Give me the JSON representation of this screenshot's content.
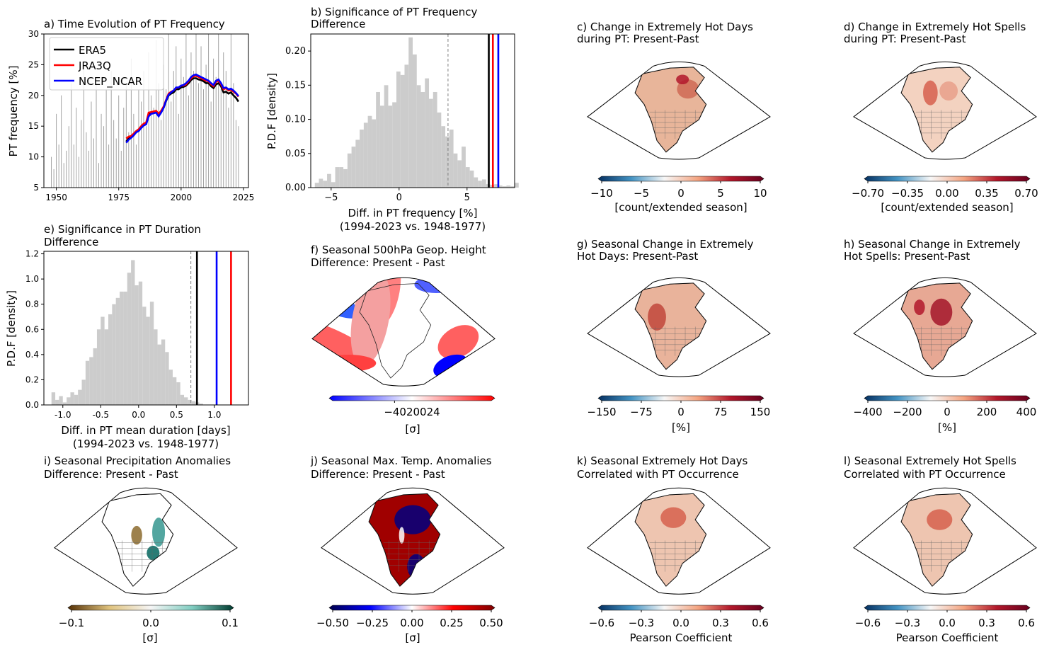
{
  "panels": {
    "a": {
      "title": [
        "a) Time Evolution of PT Frequency"
      ],
      "ylabel": "PT frequency [%]"
    },
    "b": {
      "title": [
        "b) Significance of PT Frequency",
        "Difference"
      ],
      "xlabel": [
        "Diff. in PT frequency [%]",
        "(1994-2023 vs. 1948-1977)"
      ],
      "ylabel": "P.D.F [density]"
    },
    "c": {
      "title": [
        "c) Change in Extremely Hot Days",
        "during PT: Present-Past"
      ],
      "cbar_label": "[count/extended season]"
    },
    "d": {
      "title": [
        "d) Change in Extremely Hot Spells",
        "during PT: Present-Past"
      ],
      "cbar_label": "[count/extended season]"
    },
    "e": {
      "title": [
        "e) Significance in PT Duration",
        "Difference"
      ],
      "xlabel": [
        "Diff. in PT mean duration [days]",
        "(1994-2023 vs. 1948-1977)"
      ],
      "ylabel": "P.D.F [density]"
    },
    "f": {
      "title": [
        "f) Seasonal 500hPa Geop. Height",
        "Difference: Present - Past"
      ],
      "cbar_label": "[σ]"
    },
    "g": {
      "title": [
        "g) Seasonal Change in Extremely",
        "Hot Days: Present-Past"
      ],
      "cbar_label": "[%]"
    },
    "h": {
      "title": [
        "h) Seasonal Change in Extremely",
        "Hot Spells: Present-Past"
      ],
      "cbar_label": "[%]"
    },
    "i": {
      "title": [
        "i) Seasonal Precipitation Anomalies",
        "Difference: Present - Past"
      ],
      "cbar_label": "[σ]"
    },
    "j": {
      "title": [
        "j) Seasonal Max. Temp. Anomalies",
        "Difference: Present - Past"
      ],
      "cbar_label": "[σ]"
    },
    "k": {
      "title": [
        "k) Seasonal Extremely Hot Days",
        "Correlated with PT Occurrence"
      ],
      "cbar_label": "Pearson Coefficient"
    },
    "l": {
      "title": [
        "l) Seasonal Extremely Hot Spells",
        "Correlated with PT Occurrence"
      ],
      "cbar_label": "Pearson Coefficient"
    }
  },
  "colormaps": {
    "RdBu_r": [
      "#053061",
      "#4393c3",
      "#f7f7f7",
      "#f4a582",
      "#b2182b",
      "#67001f"
    ],
    "bwr": [
      "#0000ff",
      "#ffffff",
      "#ff0000"
    ],
    "seismic": [
      "#00004c",
      "#0000ff",
      "#ffffff",
      "#ff0000",
      "#7f0000"
    ],
    "BrBG": [
      "#543005",
      "#dfc27d",
      "#f5f5f5",
      "#80cdc1",
      "#003c30"
    ]
  },
  "colors": {
    "ERA5": "#000000",
    "JRA3Q": "#ff0000",
    "NCEP_NCAR": "#0000ff",
    "hist": "#cccccc",
    "annual_bars": "#999999"
  },
  "chart_data": [
    {
      "panel": "a",
      "type": "line",
      "title": "a) Time Evolution of PT Frequency",
      "xlabel": "",
      "ylabel": "PT frequency [%]",
      "xlim": [
        1945,
        2027
      ],
      "ylim": [
        5,
        30
      ],
      "xticks": [
        1950,
        1975,
        2000,
        2025
      ],
      "yticks": [
        5,
        10,
        15,
        20,
        25,
        30
      ],
      "legend": "top-left",
      "bars": {
        "name": "annual",
        "x": [
          1948,
          1949,
          1950,
          1951,
          1952,
          1953,
          1954,
          1955,
          1956,
          1957,
          1958,
          1959,
          1960,
          1961,
          1962,
          1963,
          1964,
          1965,
          1966,
          1967,
          1968,
          1969,
          1970,
          1971,
          1972,
          1973,
          1974,
          1975,
          1976,
          1977,
          1978,
          1979,
          1980,
          1981,
          1982,
          1983,
          1984,
          1985,
          1986,
          1987,
          1988,
          1989,
          1990,
          1991,
          1992,
          1993,
          1994,
          1995,
          1996,
          1997,
          1998,
          1999,
          2000,
          2001,
          2002,
          2003,
          2004,
          2005,
          2006,
          2007,
          2008,
          2009,
          2010,
          2011,
          2012,
          2013,
          2014,
          2015,
          2016,
          2017,
          2018,
          2019,
          2020,
          2021,
          2022,
          2023
        ],
        "values": [
          10,
          8,
          17,
          12,
          20,
          9,
          11,
          15,
          22,
          12,
          18,
          10,
          16,
          25,
          14,
          11,
          19,
          13,
          22,
          9,
          17,
          15,
          21,
          12,
          24,
          16,
          13,
          20,
          11,
          18,
          22,
          14,
          26,
          17,
          12,
          21,
          19,
          24,
          15,
          27,
          20,
          18,
          29,
          22,
          16,
          25,
          21,
          30,
          19,
          24,
          28,
          17,
          26,
          23,
          30,
          20,
          27,
          24,
          30,
          22,
          28,
          21,
          25,
          30,
          19,
          26,
          23,
          30,
          21,
          27,
          24,
          18,
          30,
          22,
          16,
          15
        ]
      },
      "x": [
        1978,
        1979,
        1980,
        1981,
        1982,
        1983,
        1984,
        1985,
        1986,
        1987,
        1988,
        1989,
        1990,
        1991,
        1992,
        1993,
        1994,
        1995,
        1996,
        1997,
        1998,
        1999,
        2000,
        2001,
        2002,
        2003,
        2004,
        2005,
        2006,
        2007,
        2008,
        2009,
        2010,
        2011,
        2012,
        2013,
        2014,
        2015,
        2016,
        2017,
        2018,
        2019,
        2020,
        2021,
        2022,
        2023
      ],
      "series": [
        {
          "name": "ERA5",
          "values": [
            12.5,
            13.0,
            13.2,
            13.6,
            14.0,
            14.3,
            14.7,
            15.2,
            15.4,
            16.8,
            17.1,
            17.2,
            17.3,
            16.8,
            17.3,
            18.0,
            19.1,
            20.0,
            20.3,
            20.5,
            21.0,
            21.0,
            21.3,
            21.4,
            21.6,
            22.0,
            22.5,
            22.8,
            22.8,
            22.6,
            22.5,
            22.3,
            22.0,
            22.0,
            21.5,
            21.2,
            21.8,
            22.0,
            21.5,
            20.5,
            20.6,
            20.3,
            20.5,
            20.0,
            19.6,
            19.0
          ]
        },
        {
          "name": "JRA3Q",
          "values": [
            13.0,
            13.3,
            13.4,
            13.8,
            14.2,
            14.5,
            15.0,
            15.4,
            15.6,
            17.2,
            17.3,
            17.4,
            17.5,
            17.0,
            17.5,
            18.2,
            19.3,
            20.3,
            20.6,
            20.8,
            21.2,
            21.3,
            21.6,
            21.6,
            21.8,
            22.3,
            22.8,
            23.1,
            23.2,
            23.0,
            22.8,
            22.6,
            22.4,
            22.3,
            21.8,
            21.5,
            22.2,
            22.4,
            21.8,
            21.0,
            21.2,
            20.8,
            20.9,
            20.6,
            20.3,
            19.8
          ]
        },
        {
          "name": "NCEP_NCAR",
          "values": [
            12.3,
            12.8,
            13.1,
            13.5,
            14.0,
            14.2,
            14.7,
            15.1,
            15.3,
            16.6,
            17.0,
            17.1,
            17.2,
            16.6,
            17.2,
            18.0,
            19.2,
            20.1,
            20.5,
            20.8,
            21.3,
            21.3,
            21.6,
            21.7,
            22.0,
            22.4,
            23.0,
            23.3,
            23.4,
            23.2,
            23.0,
            22.8,
            22.6,
            22.4,
            22.0,
            21.7,
            22.4,
            22.6,
            22.0,
            21.2,
            21.3,
            21.0,
            21.1,
            20.8,
            20.4,
            19.9
          ]
        }
      ]
    },
    {
      "panel": "b",
      "type": "bar",
      "title": "b) Significance of PT Frequency Difference",
      "xlabel": "Diff. in PT frequency [%] (1994-2023 vs. 1948-1977)",
      "ylabel": "P.D.F [density]",
      "xlim": [
        -6.5,
        8.5
      ],
      "ylim": [
        0,
        0.225
      ],
      "xticks": [
        -5,
        0,
        5
      ],
      "yticks": [
        0,
        0.05,
        0.1,
        0.15,
        0.2
      ],
      "ytick_labels": [
        "0.00",
        "0.05",
        "0.10",
        "0.15",
        "0.20"
      ],
      "bin_start": -6.2,
      "bin_width": 0.3,
      "values": [
        0.007,
        0.013,
        0.01,
        0.02,
        0.008,
        0.03,
        0.03,
        0.027,
        0.05,
        0.06,
        0.07,
        0.085,
        0.095,
        0.105,
        0.1,
        0.14,
        0.12,
        0.15,
        0.12,
        0.125,
        0.17,
        0.165,
        0.18,
        0.22,
        0.195,
        0.15,
        0.14,
        0.16,
        0.13,
        0.14,
        0.11,
        0.09,
        0.075,
        0.085,
        0.05,
        0.04,
        0.06,
        0.03,
        0.025,
        0.015,
        0.01,
        0.012,
        0.005,
        0.004,
        0.005,
        0.003,
        0.002,
        0.003,
        0.002,
        0.007
      ],
      "vlines": [
        {
          "x": 3.6,
          "style": "dashed",
          "color": "#808080"
        },
        {
          "x": 6.6,
          "name": "ERA5",
          "color": "#000000"
        },
        {
          "x": 6.9,
          "name": "JRA3Q",
          "color": "#ff0000"
        },
        {
          "x": 7.3,
          "name": "NCEP_NCAR",
          "color": "#0000ff"
        }
      ]
    },
    {
      "panel": "e",
      "type": "bar",
      "title": "e) Significance in PT Duration Difference",
      "xlabel": "Diff. in PT mean duration [days] (1994-2023 vs. 1948-1977)",
      "ylabel": "P.D.F [density]",
      "xlim": [
        -1.25,
        1.45
      ],
      "ylim": [
        0,
        1.22
      ],
      "xticks": [
        -1.0,
        -0.5,
        0.0,
        0.5,
        1.0
      ],
      "xtick_labels": [
        "-1.0",
        "-0.5",
        "0.0",
        "0.5",
        "1.0"
      ],
      "yticks": [
        0,
        0.2,
        0.4,
        0.6,
        0.8,
        1.0,
        1.2
      ],
      "ytick_labels": [
        "0.0",
        "0.2",
        "0.4",
        "0.6",
        "0.8",
        "1.0",
        "1.2"
      ],
      "bin_start": -1.15,
      "bin_width": 0.05,
      "values": [
        0.1,
        0.04,
        0.07,
        0.02,
        0.06,
        0.1,
        0.08,
        0.12,
        0.2,
        0.35,
        0.38,
        0.45,
        0.6,
        0.7,
        0.6,
        0.72,
        0.8,
        0.85,
        0.9,
        0.9,
        1.05,
        1.15,
        0.95,
        0.98,
        0.78,
        0.7,
        0.82,
        0.6,
        0.48,
        0.52,
        0.42,
        0.28,
        0.22,
        0.18,
        0.08,
        0.06,
        0.04,
        0.03,
        0.02,
        0.01
      ],
      "vlines": [
        {
          "x": 0.69,
          "style": "dashed",
          "color": "#808080"
        },
        {
          "x": 0.77,
          "name": "ERA5",
          "color": "#000000"
        },
        {
          "x": 1.03,
          "name": "NCEP_NCAR",
          "color": "#0000ff"
        },
        {
          "x": 1.22,
          "name": "JRA3Q",
          "color": "#ff0000"
        }
      ]
    },
    {
      "panel": "c",
      "type": "heatmap",
      "cmap": "RdBu_r",
      "cbar_ticks": [
        "−10",
        "−5",
        "0",
        "5",
        "10"
      ],
      "cbar_label": "[count/extended season]"
    },
    {
      "panel": "d",
      "type": "heatmap",
      "cmap": "RdBu_r",
      "cbar_ticks": [
        "−0.70",
        "−0.35",
        "0.00",
        "0.35",
        "0.70"
      ],
      "cbar_label": "[count/extended season]"
    },
    {
      "panel": "f",
      "type": "heatmap",
      "cmap": "bwr",
      "cbar_ticks": [
        "−0",
        "0",
        "0",
        "2",
        "4"
      ],
      "cbar_tick_label": "−4020024",
      "cbar_label": "[σ]"
    },
    {
      "panel": "g",
      "type": "heatmap",
      "cmap": "RdBu_r",
      "cbar_ticks": [
        "−150",
        "−75",
        "0",
        "75",
        "150"
      ],
      "cbar_label": "[%]"
    },
    {
      "panel": "h",
      "type": "heatmap",
      "cmap": "RdBu_r",
      "cbar_ticks": [
        "−400",
        "−200",
        "0",
        "200",
        "400"
      ],
      "cbar_label": "[%]"
    },
    {
      "panel": "i",
      "type": "heatmap",
      "cmap": "BrBG",
      "cbar_ticks": [
        "−0.1",
        "0.0",
        "0.1"
      ],
      "cbar_label": "[σ]"
    },
    {
      "panel": "j",
      "type": "heatmap",
      "cmap": "seismic",
      "cbar_ticks": [
        "−0.50",
        "−0.25",
        "0.00",
        "0.25",
        "0.50"
      ],
      "cbar_label": "[σ]"
    },
    {
      "panel": "k",
      "type": "heatmap",
      "cmap": "RdBu_r",
      "cbar_ticks": [
        "−0.6",
        "−0.3",
        "0.0",
        "0.3",
        "0.6"
      ],
      "cbar_label": "Pearson Coefficient"
    },
    {
      "panel": "l",
      "type": "heatmap",
      "cmap": "RdBu_r",
      "cbar_ticks": [
        "−0.6",
        "−0.3",
        "0.0",
        "0.3",
        "0.6"
      ],
      "cbar_label": "Pearson Coefficient"
    }
  ]
}
